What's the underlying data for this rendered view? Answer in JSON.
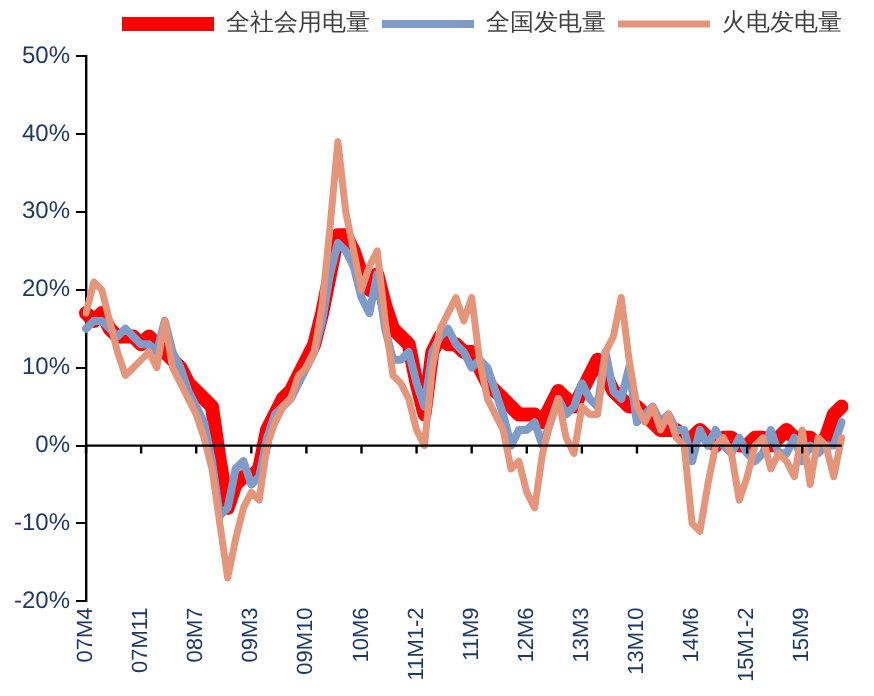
{
  "chart_data": {
    "type": "line",
    "categories": [
      "07M4",
      null,
      null,
      null,
      null,
      null,
      null,
      "07M11",
      null,
      null,
      null,
      null,
      null,
      null,
      "08M7",
      null,
      null,
      null,
      null,
      null,
      null,
      "09M3",
      null,
      null,
      null,
      null,
      null,
      null,
      "09M10",
      null,
      null,
      null,
      null,
      null,
      null,
      "10M6",
      null,
      null,
      null,
      null,
      null,
      null,
      "11M1-2",
      null,
      null,
      null,
      null,
      null,
      null,
      "11M9",
      null,
      null,
      null,
      null,
      null,
      null,
      "12M6",
      null,
      null,
      null,
      null,
      null,
      null,
      "13M3",
      null,
      null,
      null,
      null,
      null,
      null,
      "13M10",
      null,
      null,
      null,
      null,
      null,
      null,
      "14M6",
      null,
      null,
      null,
      null,
      null,
      null,
      "15M1-2",
      null,
      null,
      null,
      null,
      null,
      null,
      "15M9",
      null,
      null,
      null,
      null,
      null
    ],
    "series": [
      {
        "name": "全社会用电量",
        "color": "#ff0000",
        "values": [
          17,
          16,
          17,
          15,
          14,
          14,
          14,
          13,
          14,
          13,
          12,
          11,
          10,
          8,
          7,
          6,
          5,
          -2,
          -8,
          -5,
          -4,
          -4,
          -3,
          2,
          4,
          6,
          7,
          9,
          11,
          13,
          17,
          22,
          27,
          27,
          25,
          22,
          20,
          22,
          18,
          15,
          14,
          13,
          8,
          4,
          12,
          14,
          13,
          13,
          12,
          12,
          10,
          8,
          7,
          6,
          5,
          4,
          4,
          4,
          3,
          5,
          7,
          6,
          5,
          7,
          9,
          11,
          9,
          7,
          6,
          5,
          5,
          4,
          3,
          2,
          2,
          2,
          1,
          1,
          2,
          1,
          0,
          1,
          1,
          0,
          0,
          1,
          1,
          0,
          1,
          2,
          1,
          1,
          1,
          0,
          1,
          4,
          5
        ]
      },
      {
        "name": "全国发电量",
        "color": "#7f9bc8",
        "values": [
          15,
          16,
          16,
          15,
          14,
          15,
          14,
          13,
          13,
          12,
          16,
          12,
          10,
          7,
          5,
          3,
          -2,
          -9,
          -8,
          -3,
          -2,
          -5,
          -4,
          1,
          4,
          5,
          6,
          8,
          10,
          12,
          16,
          22,
          26,
          25,
          23,
          19,
          17,
          22,
          15,
          11,
          11,
          12,
          8,
          5,
          12,
          14,
          15,
          13,
          12,
          10,
          11,
          10,
          7,
          4,
          0,
          2,
          2,
          3,
          0,
          3,
          6,
          4,
          5,
          8,
          6,
          5,
          12,
          7,
          6,
          10,
          3,
          4,
          5,
          3,
          4,
          2,
          2,
          -2,
          2,
          0,
          2,
          0,
          -1,
          1,
          -1,
          -2,
          -1,
          2,
          -1,
          -1,
          1,
          -2,
          0,
          -1,
          0,
          0,
          3
        ]
      },
      {
        "name": "火电发电量",
        "color": "#e5967a",
        "values": [
          17,
          21,
          20,
          16,
          12,
          9,
          10,
          11,
          12,
          10,
          16,
          10,
          8,
          6,
          4,
          1,
          -3,
          -10,
          -17,
          -12,
          -8,
          -6,
          -7,
          0,
          3,
          5,
          6,
          9,
          10,
          12,
          18,
          28,
          39,
          30,
          25,
          20,
          23,
          25,
          16,
          9,
          8,
          6,
          2,
          0,
          10,
          15,
          17,
          19,
          16,
          19,
          11,
          6,
          4,
          2,
          -3,
          -2,
          -6,
          -8,
          -1,
          3,
          6,
          1,
          -1,
          5,
          4,
          4,
          12,
          14,
          19,
          11,
          5,
          3,
          5,
          2,
          4,
          1,
          0,
          -10,
          -11,
          -5,
          0,
          1,
          -1,
          -7,
          -4,
          0,
          1,
          -3,
          -1,
          -2,
          -4,
          2,
          -5,
          1,
          0,
          -4,
          1
        ]
      }
    ],
    "ylim": [
      -20,
      50
    ],
    "yticks": [
      {
        "value": -20,
        "label": "-20%"
      },
      {
        "value": -10,
        "label": "-10%"
      },
      {
        "value": 0,
        "label": "0%"
      },
      {
        "value": 10,
        "label": "10%"
      },
      {
        "value": 20,
        "label": "20%"
      },
      {
        "value": 30,
        "label": "30%"
      },
      {
        "value": 40,
        "label": "40%"
      },
      {
        "value": 50,
        "label": "50%"
      }
    ],
    "legend": "top",
    "marker": "none",
    "line_style": "solid"
  }
}
